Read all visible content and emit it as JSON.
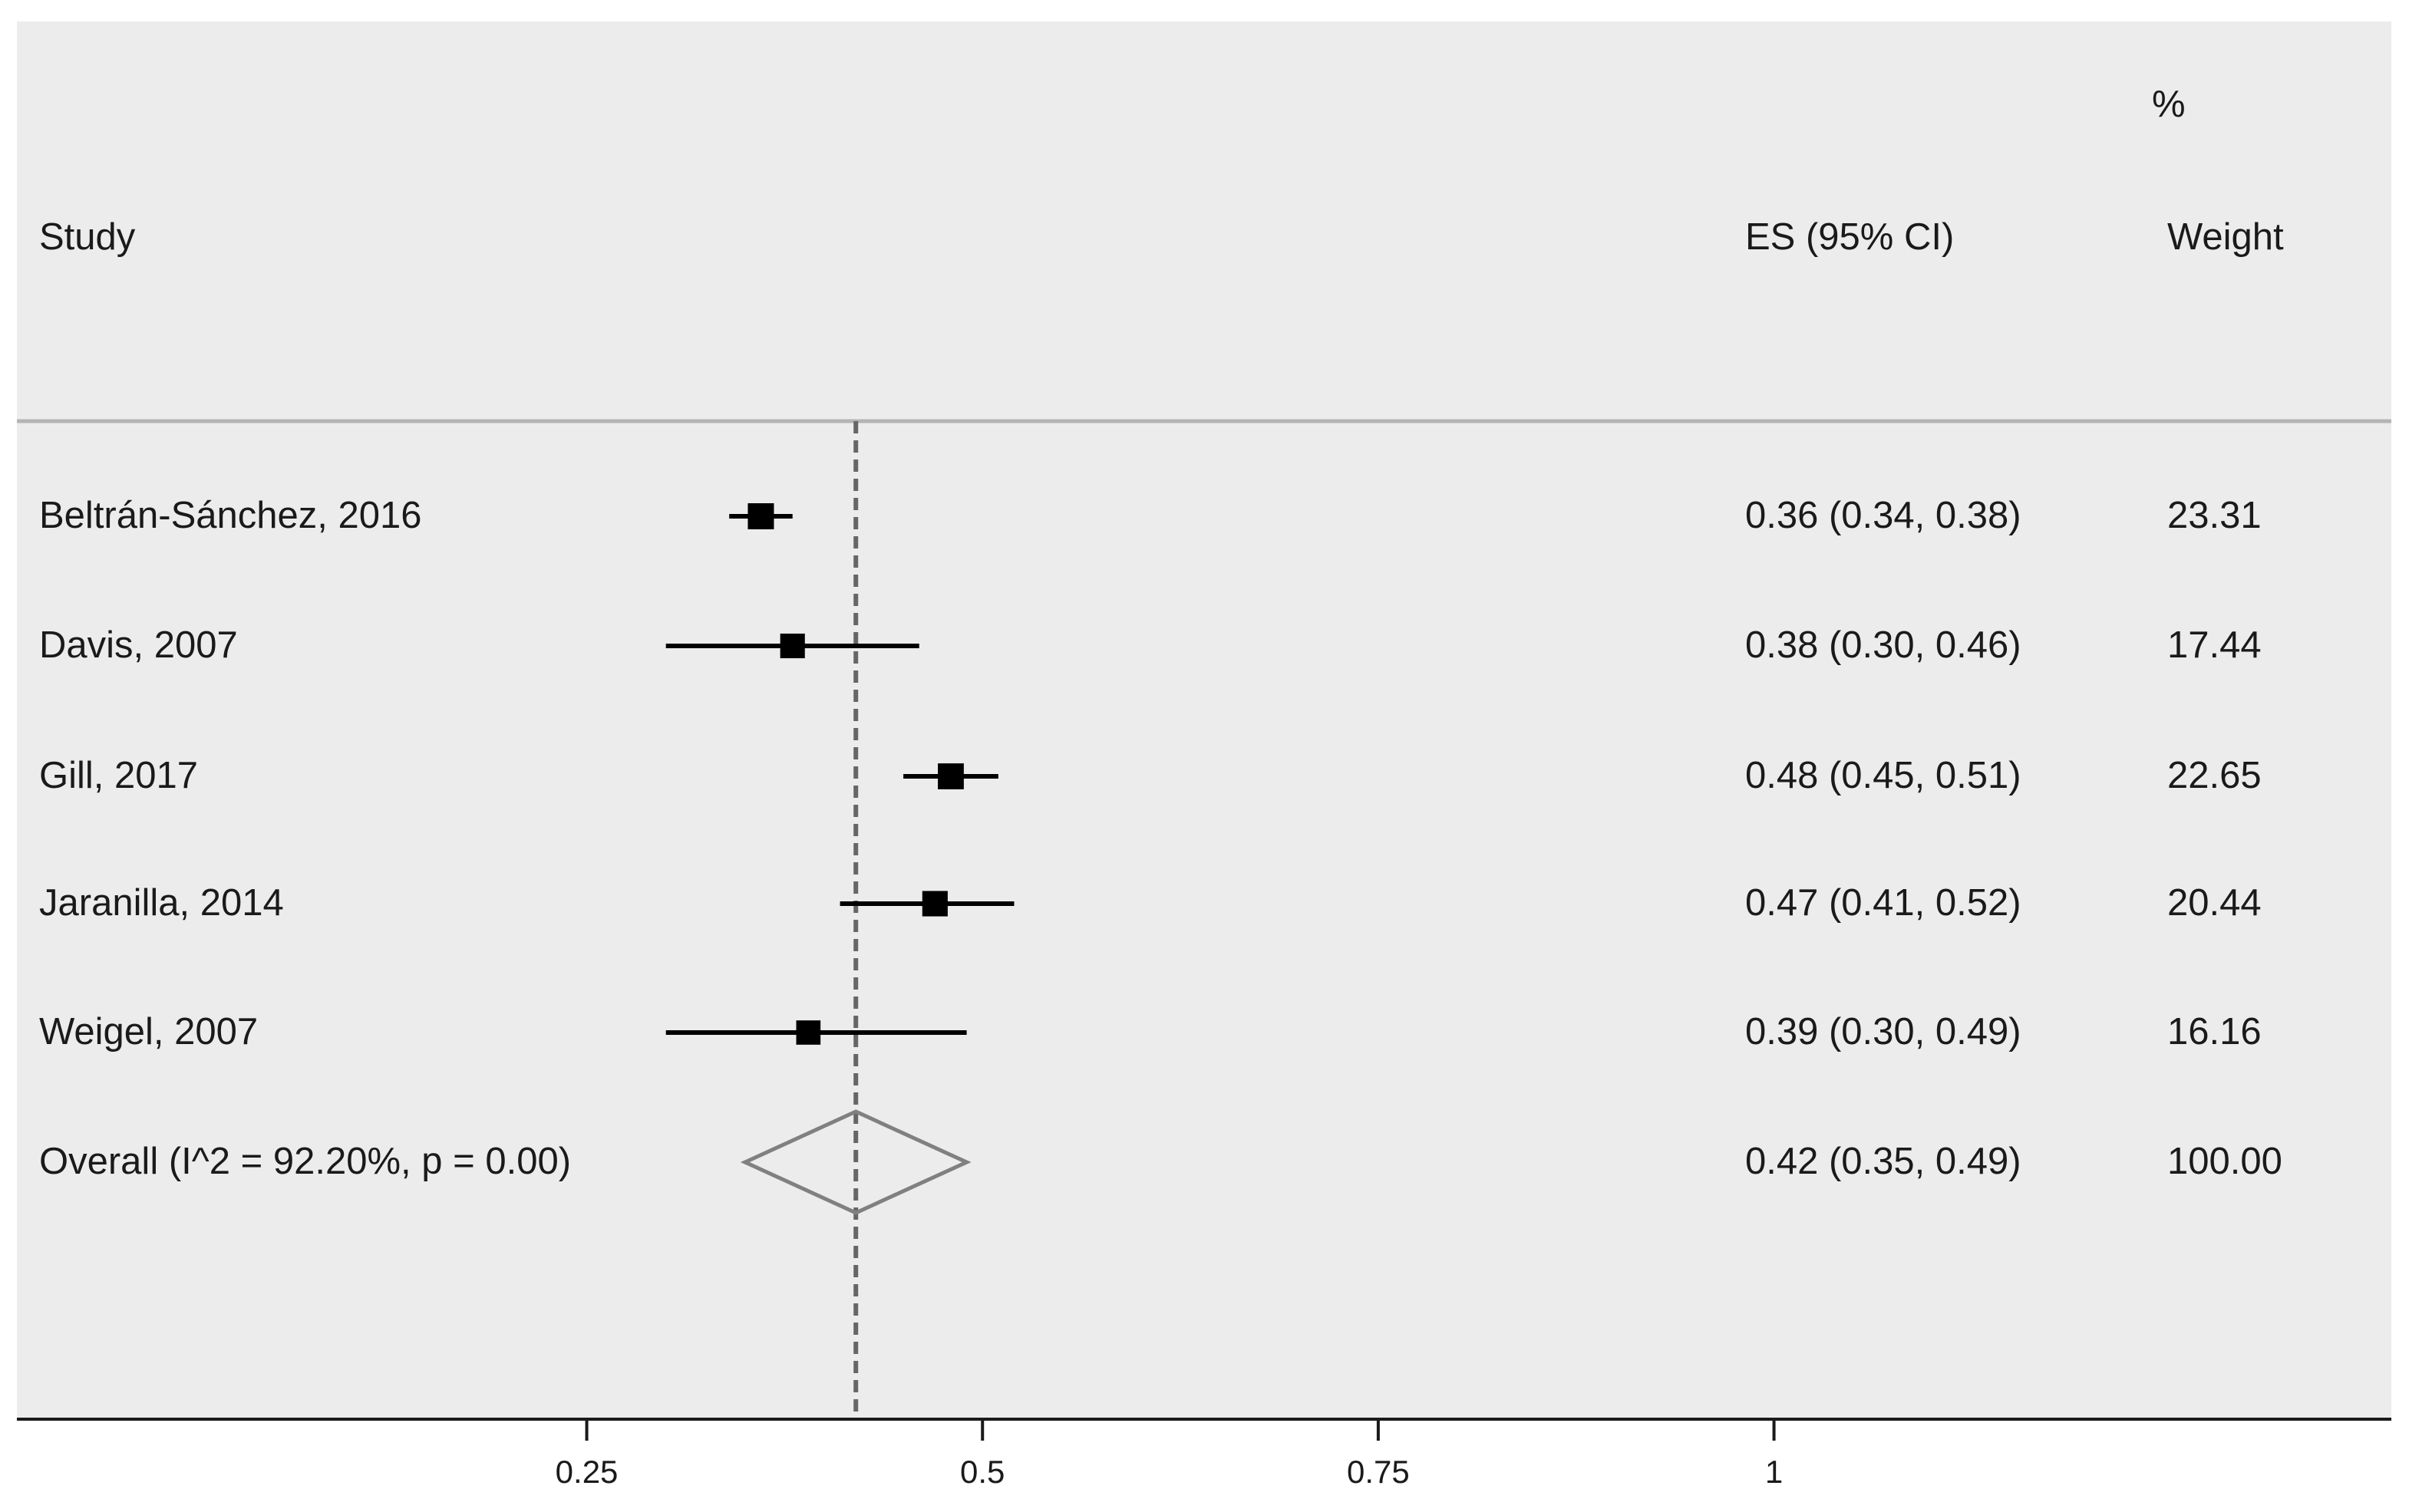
{
  "chart_data": {
    "type": "forest",
    "headers": {
      "study": "Study",
      "es": "ES (95% CI)",
      "weight_pct": "%",
      "weight": "Weight"
    },
    "studies": [
      {
        "label": "Beltrán-Sánchez, 2016",
        "es": 0.36,
        "lo": 0.34,
        "hi": 0.38,
        "es_text": "0.36 (0.34, 0.38)",
        "weight": "23.31",
        "w": 23.31
      },
      {
        "label": "Davis, 2007",
        "es": 0.38,
        "lo": 0.3,
        "hi": 0.46,
        "es_text": "0.38 (0.30, 0.46)",
        "weight": "17.44",
        "w": 17.44
      },
      {
        "label": "Gill, 2017",
        "es": 0.48,
        "lo": 0.45,
        "hi": 0.51,
        "es_text": "0.48 (0.45, 0.51)",
        "weight": "22.65",
        "w": 22.65
      },
      {
        "label": "Jaranilla, 2014",
        "es": 0.47,
        "lo": 0.41,
        "hi": 0.52,
        "es_text": "0.47 (0.41, 0.52)",
        "weight": "20.44",
        "w": 20.44
      },
      {
        "label": "Weigel, 2007",
        "es": 0.39,
        "lo": 0.3,
        "hi": 0.49,
        "es_text": "0.39 (0.30, 0.49)",
        "weight": "16.16",
        "w": 16.16
      }
    ],
    "overall": {
      "label": "Overall  (I^2 = 92.20%, p = 0.00)",
      "es": 0.42,
      "lo": 0.35,
      "hi": 0.49,
      "es_text": "0.42 (0.35, 0.49)",
      "weight": "100.00"
    },
    "x_ticks": [
      0.25,
      0.5,
      0.75,
      1
    ],
    "x_tick_labels": [
      "0.25",
      "0.5",
      "0.75",
      "1"
    ],
    "xlim": [
      -0.11,
      1.39
    ],
    "reference_line": 0.42,
    "colors": {
      "panel": "#ececec",
      "marks": "#000000",
      "diamond": "#808080",
      "ref_line": "#666666"
    }
  }
}
